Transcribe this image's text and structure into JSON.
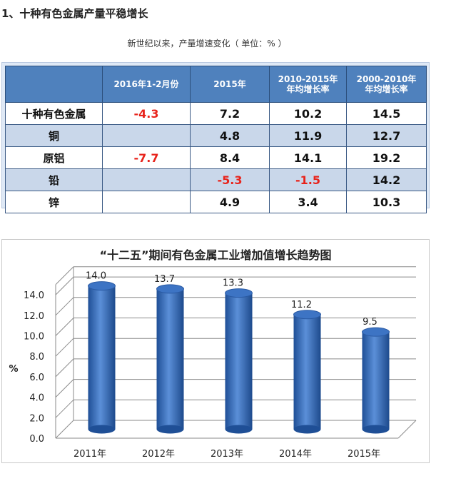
{
  "heading": "1、十种有色金属产量平稳增长",
  "subtitle": "新世纪以来，产量增速变化（ 单位：% ）",
  "table": {
    "headers": [
      "",
      "2016年1-2月份",
      "2015年",
      "2010-2015年 年均增长率",
      "2000-2010年 年均增长率"
    ],
    "rows": [
      {
        "name": "十种有色金属",
        "cells": [
          "-4.3",
          "7.2",
          "10.2",
          "14.5"
        ]
      },
      {
        "name": "铜",
        "cells": [
          "",
          "4.8",
          "11.9",
          "12.7"
        ]
      },
      {
        "name": "原铝",
        "cells": [
          "-7.7",
          "8.4",
          "14.1",
          "19.2"
        ]
      },
      {
        "name": "铅",
        "cells": [
          "",
          "-5.3",
          "-1.5",
          "14.2"
        ]
      },
      {
        "name": "锌",
        "cells": [
          "",
          "4.9",
          "3.4",
          "10.3"
        ]
      }
    ]
  },
  "chart_data": {
    "type": "bar",
    "title": "“十二五”期间有色金属工业增加值增长趋势图",
    "ylabel": "%",
    "categories": [
      "2011年",
      "2012年",
      "2013年",
      "2014年",
      "2015年"
    ],
    "values": [
      14.0,
      13.7,
      13.3,
      11.2,
      9.5
    ],
    "value_labels": [
      "14.0",
      "13.7",
      "13.3",
      "11.2",
      "9.5"
    ],
    "yticks": [
      "0.0",
      "2.0",
      "4.0",
      "6.0",
      "8.0",
      "10.0",
      "12.0",
      "14.0"
    ],
    "ylim": [
      0,
      15
    ],
    "grid": true,
    "bar_color": "#3b73c0"
  }
}
